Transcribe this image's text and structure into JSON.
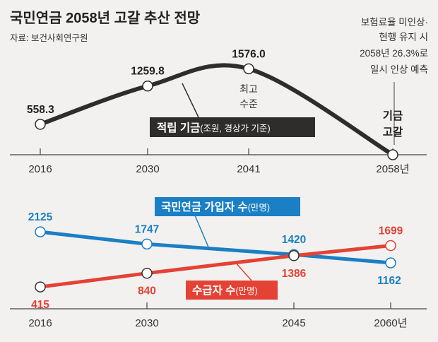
{
  "title": "국민연금 2058년 고갈 추산 전망",
  "source": "자료: 보건사회연구원",
  "colors": {
    "background": "#f2f1ef",
    "fund": "#2d2d2d",
    "subscribers": "#1a7fc4",
    "recipients": "#e34234",
    "axis": "#444444"
  },
  "chart_data": [
    {
      "type": "line",
      "series": [
        {
          "name": "적립 기금",
          "unit": "(조원, 경상가 기준)",
          "x": [
            "2016",
            "2030",
            "2041",
            "2058"
          ],
          "values": [
            558.3,
            1259.8,
            1576.0,
            0
          ]
        }
      ],
      "tick_labels": [
        "2016",
        "2030",
        "2041",
        "2058년"
      ],
      "value_labels": [
        "558.3",
        "1259.8",
        "1576.0"
      ],
      "peak_annotation": [
        "최고",
        "수준"
      ],
      "end_annotation": [
        "기금",
        "고갈"
      ],
      "note": [
        "보험료율 미인상·",
        "현행 유지 시",
        "2058년 26.3%로",
        "일시 인상 예측"
      ]
    },
    {
      "type": "line",
      "series": [
        {
          "name": "국민연금 가입자 수",
          "unit": "(만명)",
          "x": [
            "2016",
            "2030",
            "2045",
            "2060"
          ],
          "values": [
            2125,
            1747,
            1420,
            1162
          ]
        },
        {
          "name": "수급자 수",
          "unit": "(만명)",
          "x": [
            "2016",
            "2030",
            "2045",
            "2060"
          ],
          "values": [
            415,
            840,
            1386,
            1699
          ]
        }
      ],
      "tick_labels": [
        "2016",
        "2030",
        "2045",
        "2060년"
      ]
    }
  ]
}
